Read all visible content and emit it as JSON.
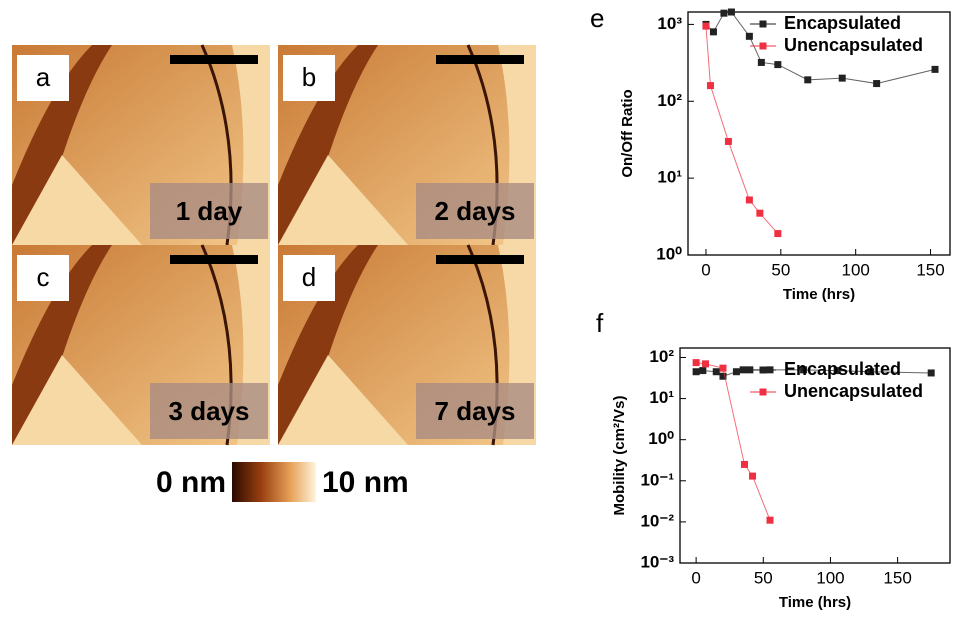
{
  "afm": {
    "panels": [
      {
        "letter": "a",
        "label": "1 day"
      },
      {
        "letter": "b",
        "label": "2 days"
      },
      {
        "letter": "c",
        "label": "3 days"
      },
      {
        "letter": "d",
        "label": "7 days"
      }
    ],
    "colorbar": {
      "min_label": "0 nm",
      "max_label": "10 nm"
    }
  },
  "chart_data": [
    {
      "type": "line",
      "panel": "e",
      "ylabel": "On/Off Ratio",
      "xlabel": "Time (hrs)",
      "log_y": true,
      "xlim": [
        -12,
        163
      ],
      "xticks": [
        0,
        50,
        100,
        150
      ],
      "ylim": [
        1,
        1450
      ],
      "yticks": [
        {
          "value": 1,
          "label": "10⁰"
        },
        {
          "value": 10,
          "label": "10¹"
        },
        {
          "value": 100,
          "label": "10²"
        },
        {
          "value": 1000,
          "label": "10³"
        }
      ],
      "series": [
        {
          "name": "Encapsulated",
          "color": "#222222",
          "x": [
            0,
            5,
            12,
            17,
            29,
            37,
            48,
            68,
            91,
            114,
            153
          ],
          "values": [
            1000,
            800,
            1400,
            1450,
            700,
            320,
            300,
            190,
            200,
            170,
            260
          ]
        },
        {
          "name": "Unencapsulated",
          "color": "#f03040",
          "x": [
            0,
            3,
            15,
            29,
            36,
            48
          ],
          "values": [
            950,
            160,
            30,
            5.2,
            3.5,
            1.9
          ]
        }
      ]
    },
    {
      "type": "line",
      "panel": "f",
      "ylabel": "Mobility (cm²/Vs)",
      "xlabel": "Time (hrs)",
      "log_y": true,
      "xlim": [
        -12,
        189
      ],
      "xticks": [
        0,
        50,
        100,
        150
      ],
      "ylim": [
        0.001,
        170
      ],
      "yticks": [
        {
          "value": 0.001,
          "label": "10⁻³"
        },
        {
          "value": 0.01,
          "label": "10⁻²"
        },
        {
          "value": 0.1,
          "label": "10⁻¹"
        },
        {
          "value": 1,
          "label": "10⁰"
        },
        {
          "value": 10,
          "label": "10¹"
        },
        {
          "value": 100,
          "label": "10²"
        }
      ],
      "series": [
        {
          "name": "Encapsulated",
          "color": "#222222",
          "x": [
            0,
            5,
            15,
            20,
            30,
            35,
            40,
            55,
            80,
            105,
            130,
            175
          ],
          "values": [
            45,
            48,
            45,
            35,
            45,
            50,
            50,
            50,
            50,
            48,
            45,
            42
          ]
        },
        {
          "name": "Unencapsulated",
          "color": "#f03040",
          "x": [
            0,
            7,
            20,
            36,
            42,
            55
          ],
          "values": [
            75,
            70,
            55,
            0.25,
            0.13,
            0.011
          ]
        }
      ]
    }
  ]
}
